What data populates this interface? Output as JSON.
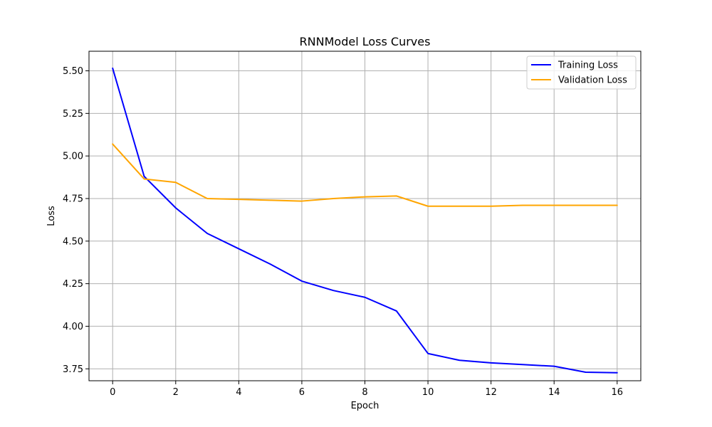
{
  "chart_data": {
    "type": "line",
    "title": "RNNModel Loss Curves",
    "xlabel": "Epoch",
    "ylabel": "Loss",
    "xlim": [
      -0.75,
      16.75
    ],
    "ylim": [
      3.68,
      5.615
    ],
    "xticks": [
      0,
      2,
      4,
      6,
      8,
      10,
      12,
      14,
      16
    ],
    "yticks": [
      3.75,
      4.0,
      4.25,
      4.5,
      4.75,
      5.0,
      5.25,
      5.5
    ],
    "ytick_labels": [
      "3.75",
      "4.00",
      "4.25",
      "4.50",
      "4.75",
      "5.00",
      "5.25",
      "5.50"
    ],
    "grid": true,
    "legend_position": "top-right",
    "x": [
      0,
      1,
      2,
      3,
      4,
      5,
      6,
      7,
      8,
      9,
      10,
      11,
      12,
      13,
      14,
      15,
      16
    ],
    "series": [
      {
        "name": "Training Loss",
        "color": "#0000ff",
        "values": [
          5.515,
          4.88,
          4.695,
          4.545,
          4.455,
          4.365,
          4.265,
          4.21,
          4.17,
          4.09,
          3.84,
          3.8,
          3.785,
          3.775,
          3.765,
          3.73,
          3.727
        ]
      },
      {
        "name": "Validation Loss",
        "color": "#ffa500",
        "values": [
          5.07,
          4.865,
          4.845,
          4.75,
          4.745,
          4.74,
          4.735,
          4.75,
          4.76,
          4.765,
          4.705,
          4.705,
          4.705,
          4.71,
          4.71,
          4.71,
          4.71
        ]
      }
    ]
  }
}
